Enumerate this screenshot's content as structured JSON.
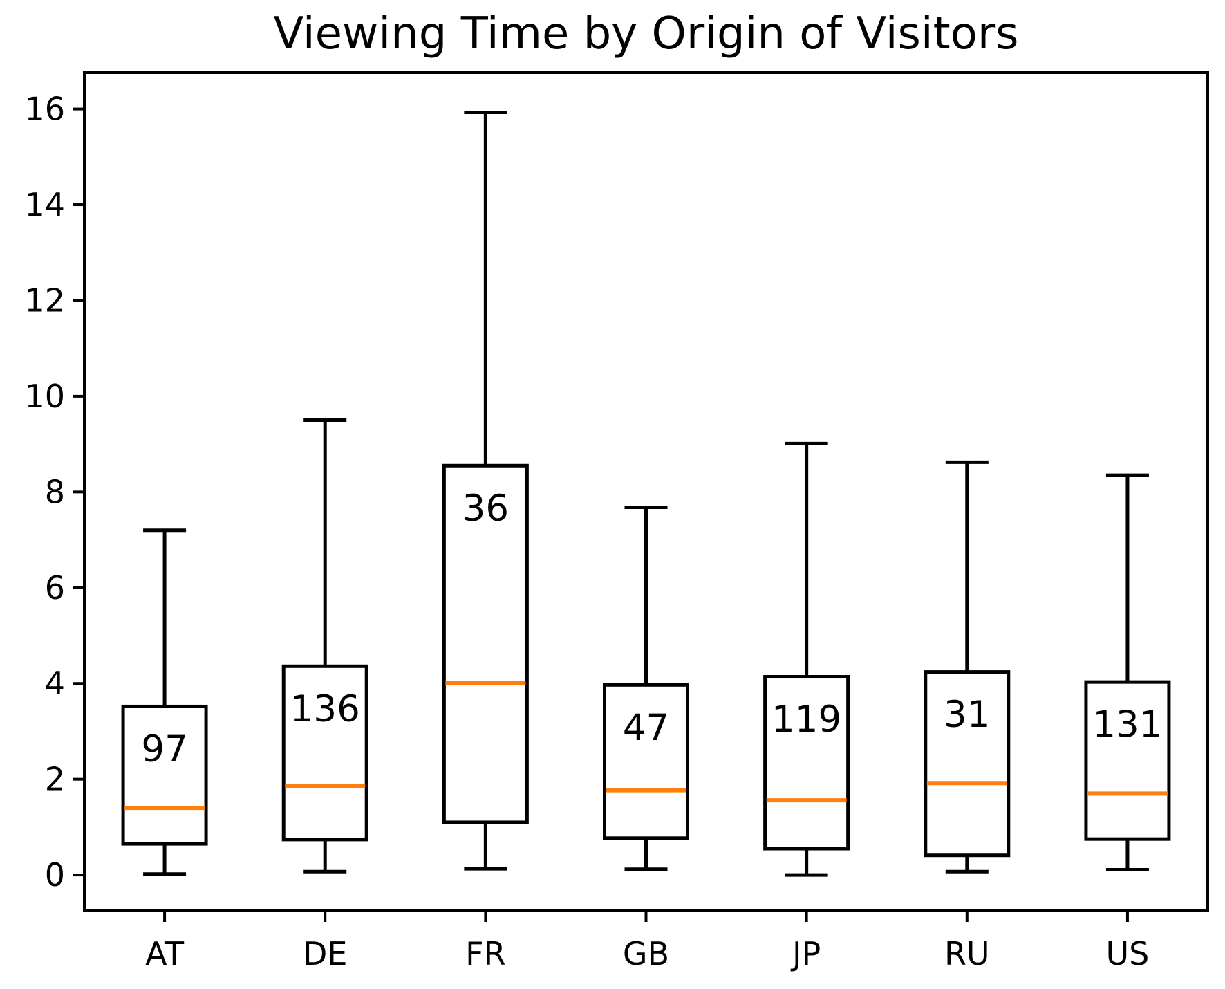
{
  "chart_data": {
    "type": "boxplot",
    "title": "Viewing Time by Origin of Visitors",
    "xlabel": "",
    "ylabel": "",
    "categories": [
      "AT",
      "DE",
      "FR",
      "GB",
      "JP",
      "RU",
      "US"
    ],
    "series": [
      {
        "label": "AT",
        "count": 97,
        "whisker_low": 0.02,
        "q1": 0.65,
        "median": 1.4,
        "q3": 3.52,
        "whisker_high": 7.2
      },
      {
        "label": "DE",
        "count": 136,
        "whisker_low": 0.07,
        "q1": 0.74,
        "median": 1.86,
        "q3": 4.36,
        "whisker_high": 9.5
      },
      {
        "label": "FR",
        "count": 36,
        "whisker_low": 0.13,
        "q1": 1.1,
        "median": 4.01,
        "q3": 8.55,
        "whisker_high": 15.93
      },
      {
        "label": "GB",
        "count": 47,
        "whisker_low": 0.12,
        "q1": 0.77,
        "median": 1.77,
        "q3": 3.97,
        "whisker_high": 7.68
      },
      {
        "label": "JP",
        "count": 119,
        "whisker_low": 0.0,
        "q1": 0.55,
        "median": 1.56,
        "q3": 4.14,
        "whisker_high": 9.01
      },
      {
        "label": "RU",
        "count": 31,
        "whisker_low": 0.07,
        "q1": 0.41,
        "median": 1.92,
        "q3": 4.24,
        "whisker_high": 8.62
      },
      {
        "label": "US",
        "count": 131,
        "whisker_low": 0.11,
        "q1": 0.75,
        "median": 1.7,
        "q3": 4.03,
        "whisker_high": 8.35
      }
    ],
    "y_ticks": [
      0,
      2,
      4,
      6,
      8,
      10,
      12,
      14,
      16
    ],
    "ylim": [
      -0.75,
      16.76
    ],
    "grid": false,
    "legend": "none",
    "box_color": "#000000",
    "median_color": "#ff7f0e",
    "background_color": "#ffffff"
  }
}
